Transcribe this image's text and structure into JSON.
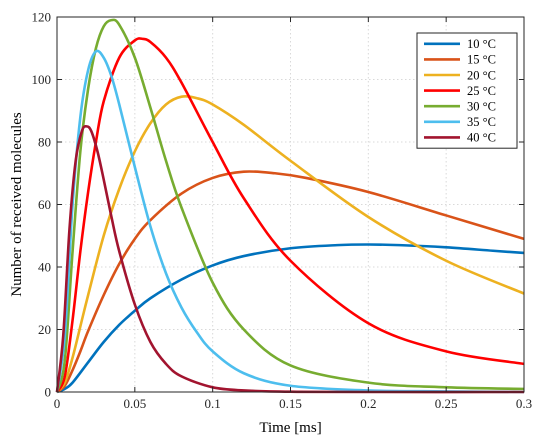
{
  "chart_data": {
    "type": "line",
    "title": "",
    "xlabel": "Time [ms]",
    "ylabel": "Number of received molecules",
    "xlim": [
      0,
      0.3
    ],
    "ylim": [
      0,
      120
    ],
    "xticks": [
      "0",
      "0.05",
      "0.1",
      "0.15",
      "0.2",
      "0.25",
      "0.3"
    ],
    "yticks": [
      "0",
      "20",
      "40",
      "60",
      "80",
      "100",
      "120"
    ],
    "grid": true,
    "legend_position": "top-right",
    "series": [
      {
        "name": "10 °C",
        "color": "#0072bd",
        "x": [
          0,
          0.005,
          0.01,
          0.02,
          0.03,
          0.04,
          0.05,
          0.06,
          0.08,
          0.1,
          0.12,
          0.15,
          0.18,
          0.2,
          0.22,
          0.25,
          0.28,
          0.3
        ],
        "y": [
          0,
          1,
          3,
          9.5,
          16,
          21.5,
          26,
          30,
          36,
          40.5,
          43.5,
          46,
          47,
          47.2,
          47,
          46.3,
          45.2,
          44.5
        ]
      },
      {
        "name": "15 °C",
        "color": "#d95319",
        "x": [
          0,
          0.005,
          0.01,
          0.015,
          0.02,
          0.03,
          0.04,
          0.05,
          0.06,
          0.08,
          0.1,
          0.12,
          0.14,
          0.16,
          0.2,
          0.25,
          0.3
        ],
        "y": [
          0,
          2,
          7,
          13,
          19.5,
          31,
          41,
          49,
          55,
          63.5,
          68.5,
          70.5,
          70,
          68.5,
          64,
          56.5,
          49
        ]
      },
      {
        "name": "20 °C",
        "color": "#edb120",
        "x": [
          0,
          0.005,
          0.01,
          0.015,
          0.02,
          0.03,
          0.04,
          0.05,
          0.06,
          0.07,
          0.08,
          0.09,
          0.1,
          0.12,
          0.15,
          0.2,
          0.25,
          0.3
        ],
        "y": [
          0,
          3,
          11,
          21,
          31,
          50,
          65,
          77,
          86,
          92,
          94.5,
          94,
          92,
          85.5,
          74,
          56,
          42,
          31.5
        ]
      },
      {
        "name": "25 °C",
        "color": "#ff0000",
        "x": [
          0,
          0.005,
          0.01,
          0.015,
          0.02,
          0.025,
          0.03,
          0.04,
          0.05,
          0.055,
          0.06,
          0.07,
          0.08,
          0.1,
          0.12,
          0.15,
          0.2,
          0.25,
          0.3
        ],
        "y": [
          0,
          5,
          23,
          45,
          64,
          80,
          93,
          107,
          112.5,
          113,
          112,
          107,
          99,
          80,
          62,
          42,
          22,
          13,
          9
        ]
      },
      {
        "name": "30 °C",
        "color": "#77ac30",
        "x": [
          0,
          0.005,
          0.01,
          0.015,
          0.02,
          0.025,
          0.03,
          0.035,
          0.04,
          0.05,
          0.06,
          0.07,
          0.08,
          0.1,
          0.12,
          0.15,
          0.2,
          0.25,
          0.3
        ],
        "y": [
          0,
          10,
          45,
          77,
          97,
          110,
          117,
          119,
          117.5,
          107,
          91,
          74,
          59,
          35,
          20,
          8.5,
          3,
          1.5,
          1
        ]
      },
      {
        "name": "35 °C",
        "color": "#4dbeee",
        "x": [
          0,
          0.005,
          0.01,
          0.015,
          0.02,
          0.025,
          0.03,
          0.035,
          0.04,
          0.05,
          0.06,
          0.07,
          0.08,
          0.09,
          0.1,
          0.12,
          0.15,
          0.2,
          0.25,
          0.3
        ],
        "y": [
          0,
          18,
          60,
          88,
          103,
          109,
          107,
          101,
          92,
          72,
          53,
          38,
          27,
          19,
          13,
          6,
          2,
          0.5,
          0.2,
          0
        ]
      },
      {
        "name": "40 °C",
        "color": "#a2142f",
        "x": [
          0,
          0.004,
          0.008,
          0.012,
          0.016,
          0.019,
          0.022,
          0.026,
          0.03,
          0.035,
          0.04,
          0.05,
          0.06,
          0.07,
          0.08,
          0.1,
          0.12,
          0.15,
          0.2,
          0.3
        ],
        "y": [
          0,
          18,
          52,
          74,
          83.5,
          85,
          83.5,
          77,
          68,
          56,
          45,
          28,
          16,
          9,
          5,
          1.5,
          0.5,
          0.1,
          0,
          0
        ]
      }
    ]
  }
}
